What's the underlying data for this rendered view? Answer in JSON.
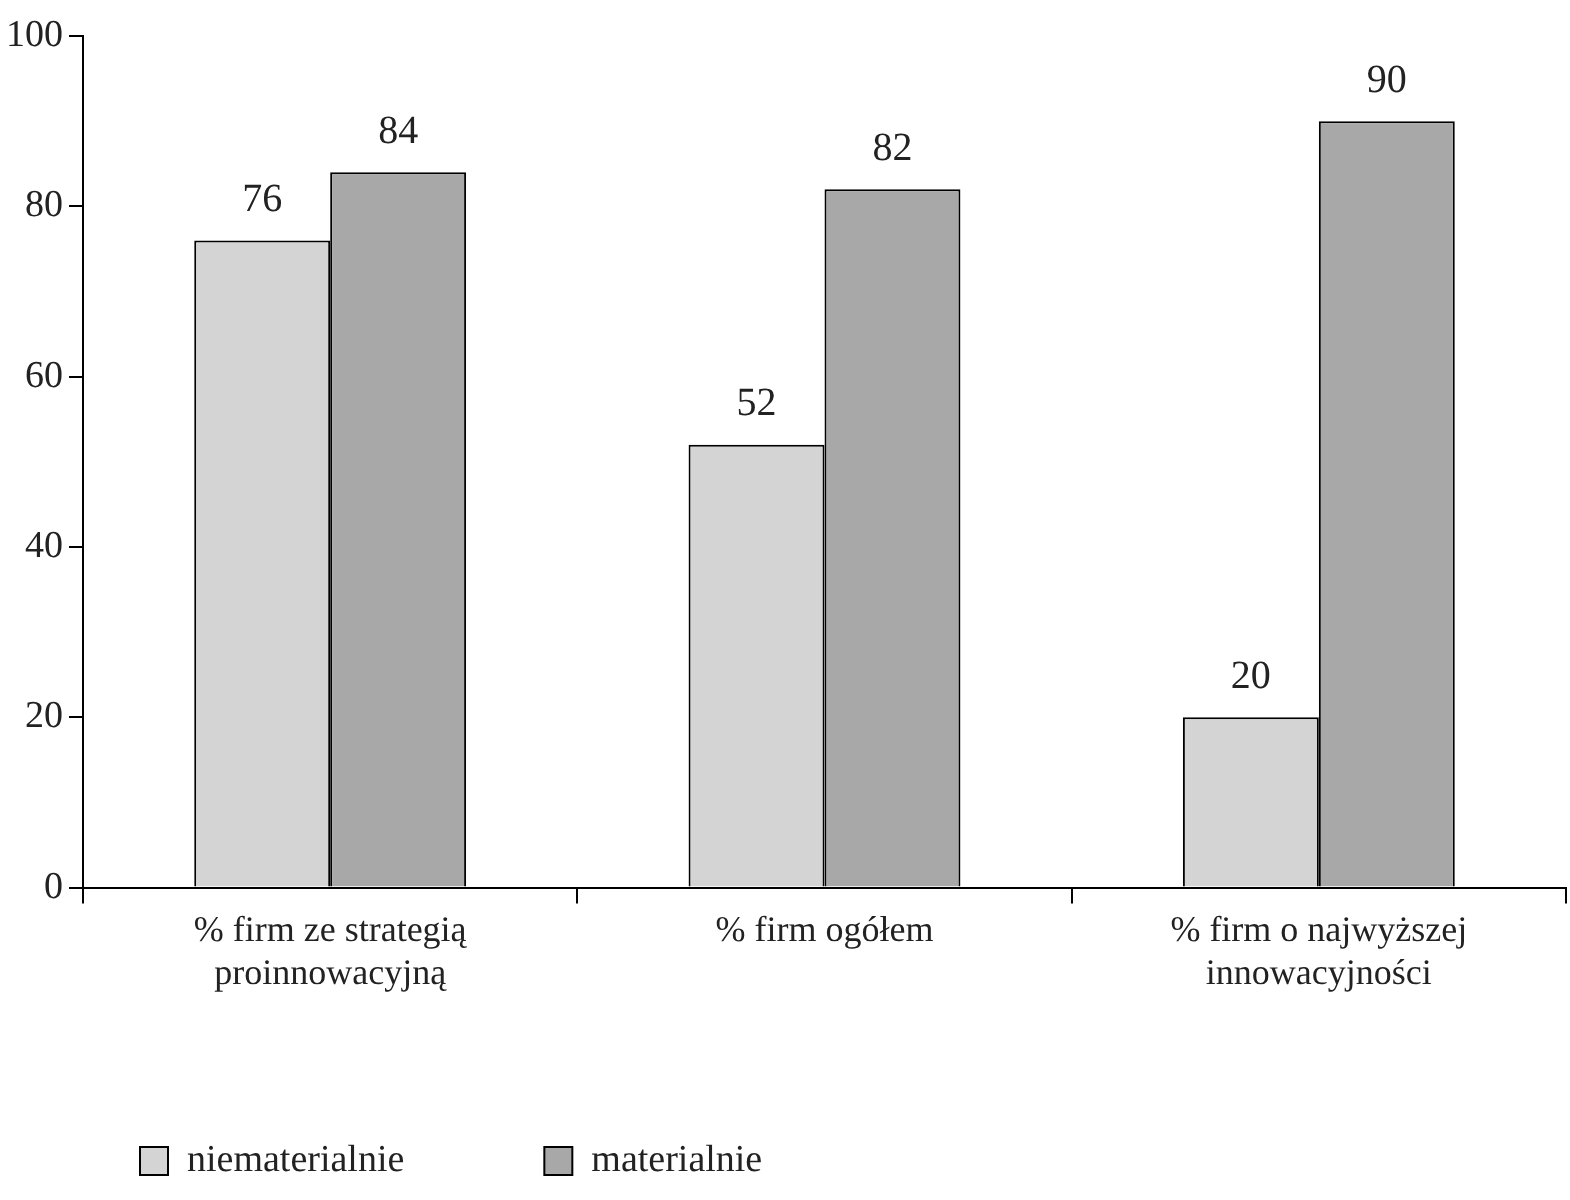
{
  "chart_data": {
    "type": "bar",
    "categories": [
      "% firm ze strategią proinnowacyjną",
      "% firm ogółem",
      "% firm o najwyższej innowacyjności"
    ],
    "series": [
      {
        "name": "niematerialnie",
        "color": "#d4d4d4",
        "values": [
          76,
          52,
          20
        ]
      },
      {
        "name": "materialnie",
        "color": "#a8a8a8",
        "values": [
          84,
          82,
          90
        ]
      }
    ],
    "ylim": [
      0,
      100
    ],
    "yticks": [
      0,
      20,
      40,
      60,
      80,
      100
    ],
    "grid": false,
    "legend": "bottom",
    "data_labels": true
  }
}
